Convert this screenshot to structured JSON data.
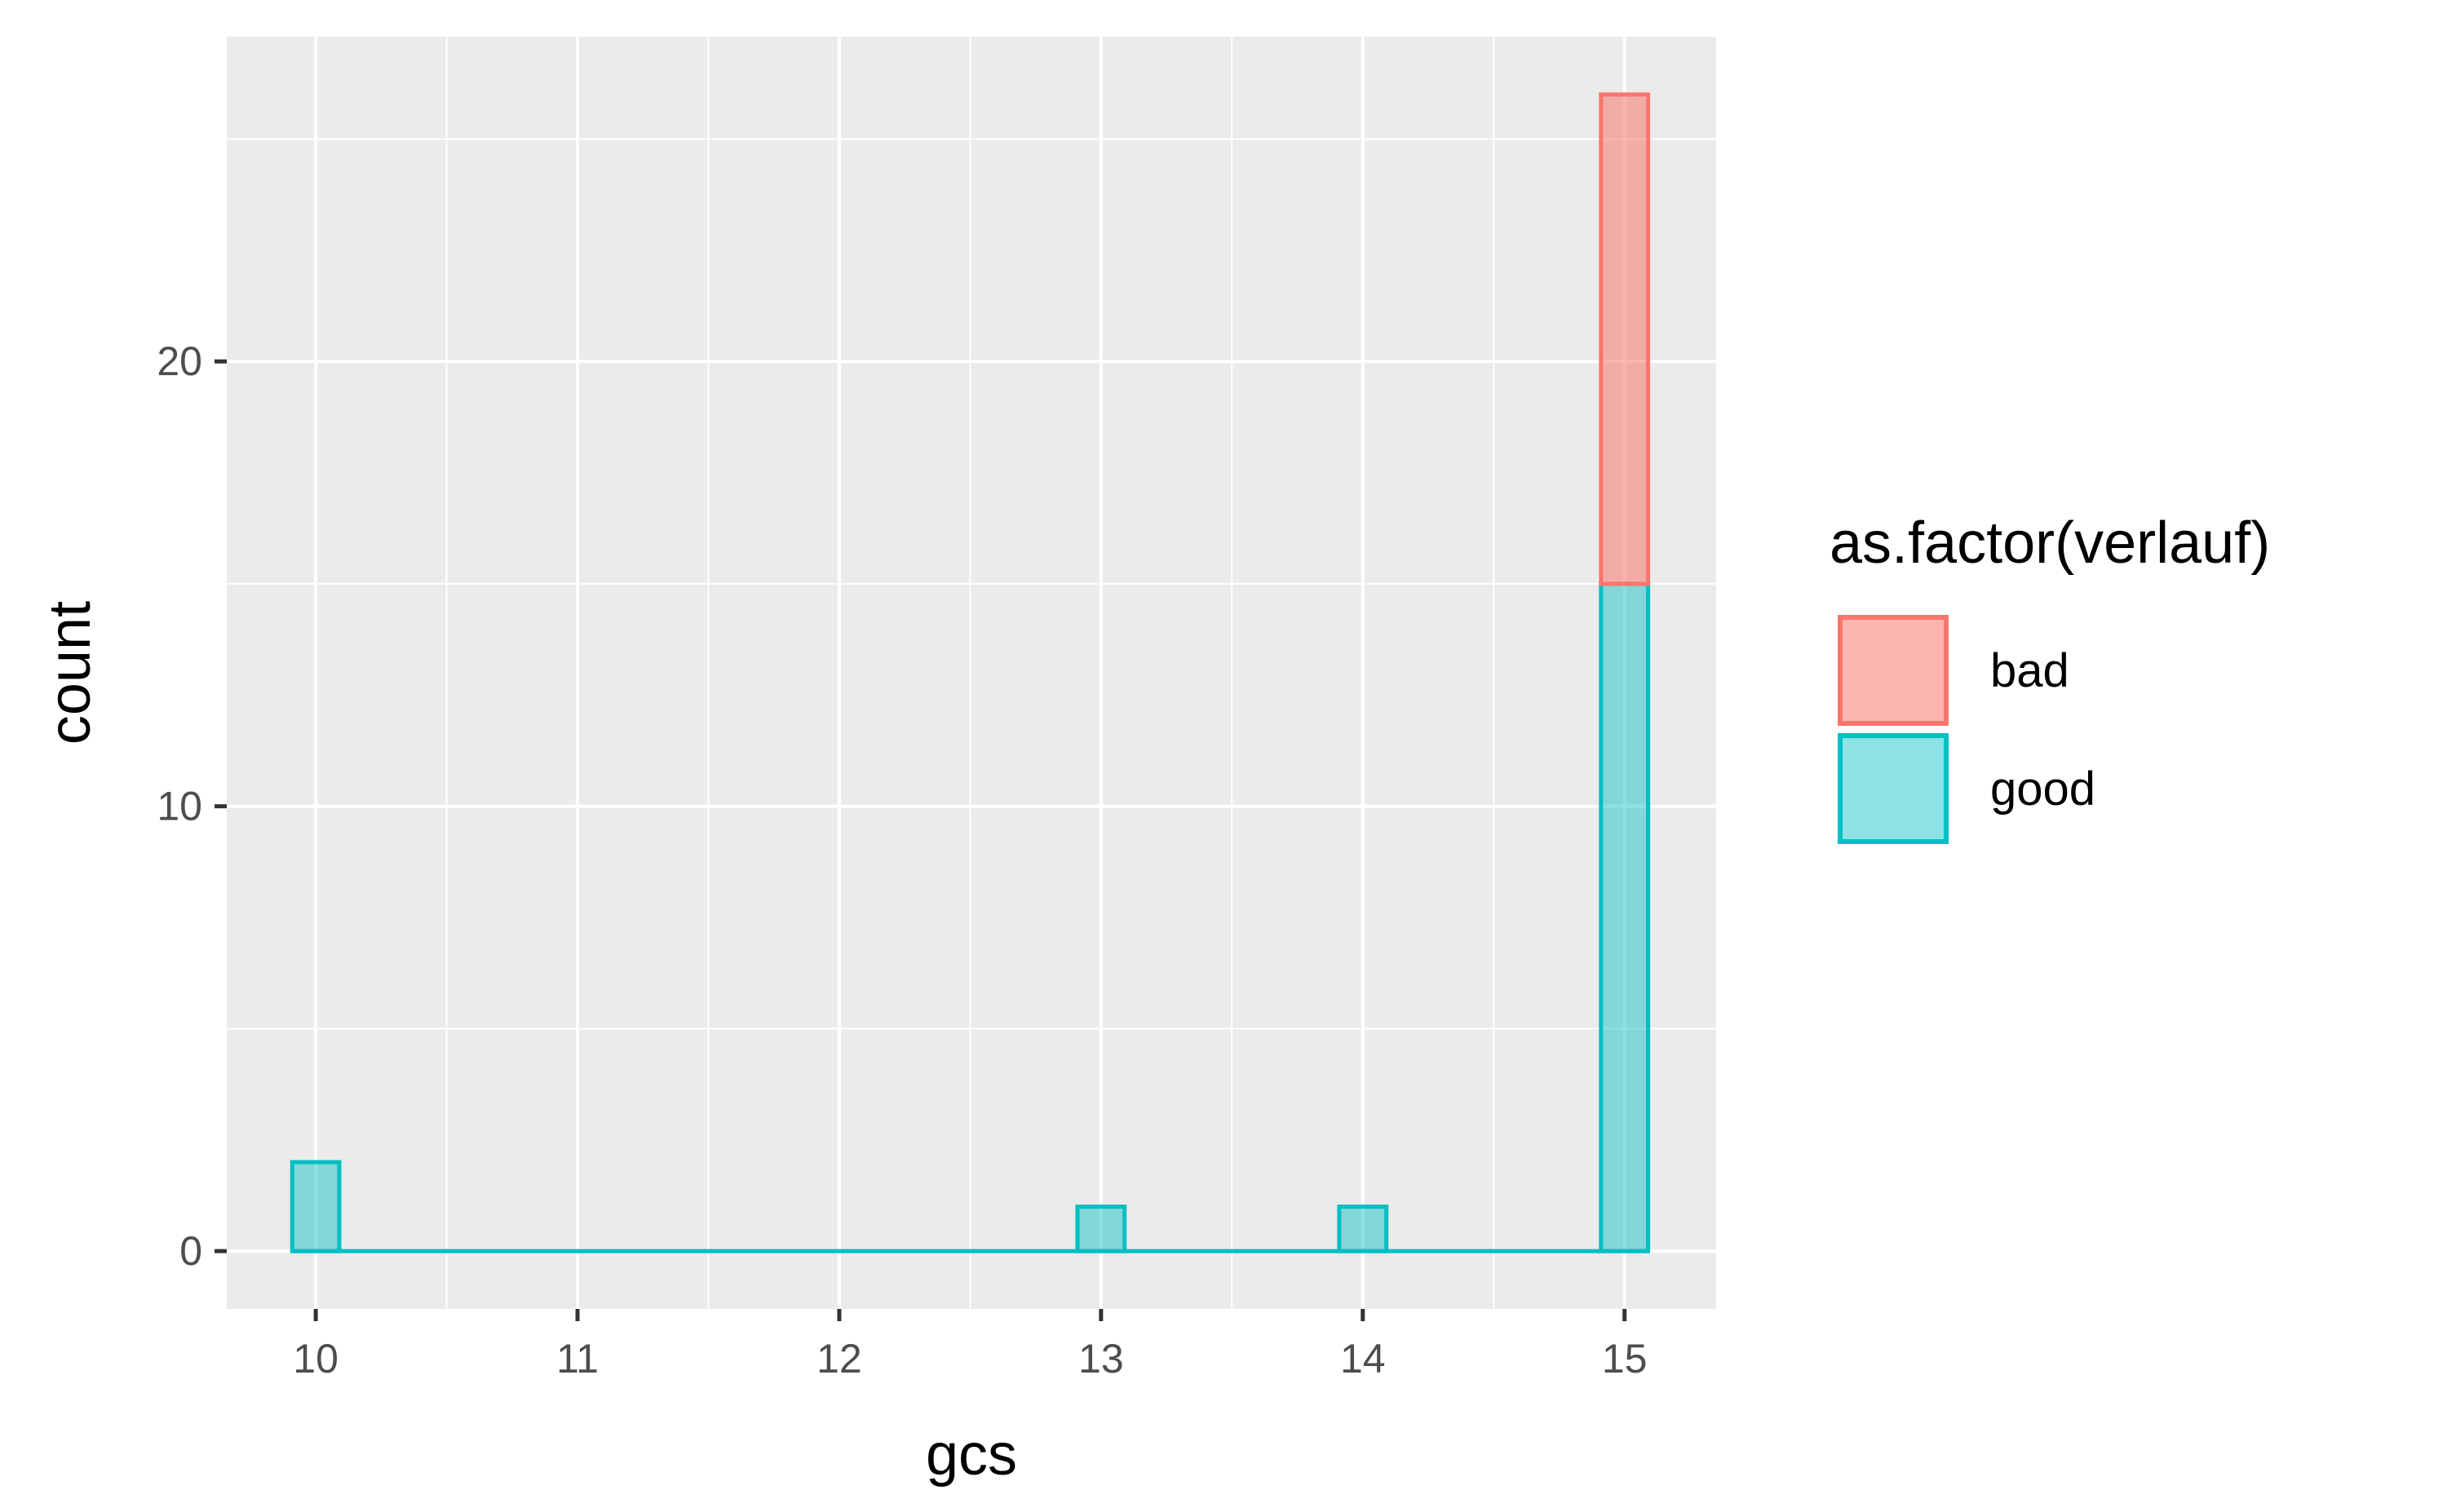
{
  "chart_data": {
    "type": "bar",
    "subtype": "stacked-histogram",
    "xlabel": "gcs",
    "ylabel": "count",
    "xlim": [
      9.66,
      15.35
    ],
    "ylim": [
      -1.3,
      27.3
    ],
    "x_ticks": [
      10,
      11,
      12,
      13,
      14,
      15
    ],
    "y_ticks": [
      0,
      10,
      20
    ],
    "bin_width": 0.18,
    "grid": true,
    "legend": {
      "title": "as.factor(verlauf)",
      "position": "right",
      "entries": [
        "bad",
        "good"
      ]
    },
    "series": [
      {
        "name": "bad",
        "color": "#F8766D",
        "x": [
          10,
          13,
          14,
          15
        ],
        "values": [
          0,
          0,
          0,
          11
        ]
      },
      {
        "name": "good",
        "color": "#00BFC4",
        "x": [
          10,
          13,
          14,
          15
        ],
        "values": [
          2,
          1,
          1,
          15
        ]
      }
    ],
    "background": "#EBEBEB"
  }
}
